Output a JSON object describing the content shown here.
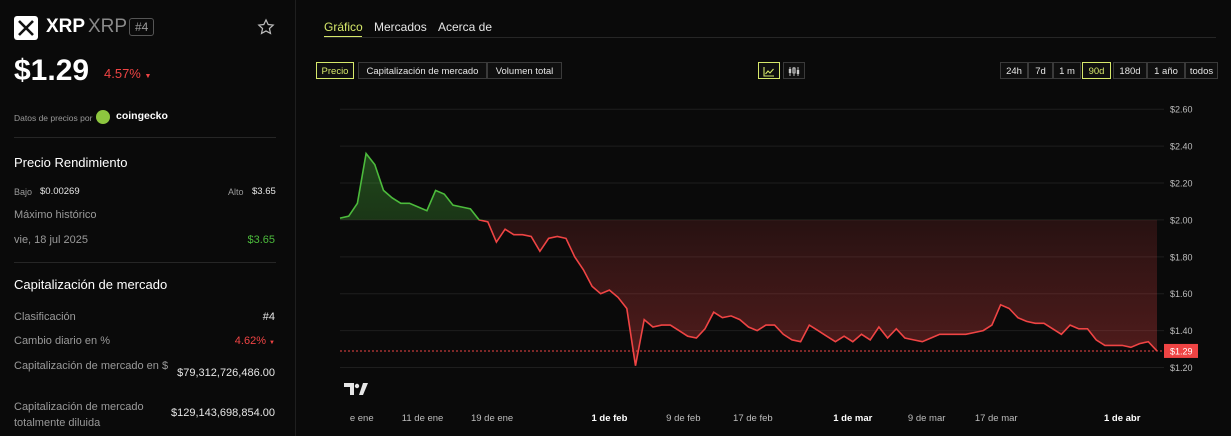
{
  "header": {
    "name": "XRP",
    "ticker": "XRP",
    "rank": "#4",
    "price": "$1.29",
    "change": "4.57%",
    "price_source_label": "Datos de precios por",
    "price_source_name": "coingecko"
  },
  "performance": {
    "title": "Precio Rendimiento",
    "low_label": "Bajo",
    "low_value": "$0.00269",
    "high_label": "Alto",
    "high_value": "$3.65",
    "ath_label": "Máximo histórico",
    "ath_date": "vie, 18 jul 2025",
    "ath_value": "$3.65"
  },
  "market_cap": {
    "title": "Capitalización de mercado",
    "rows": [
      {
        "label": "Clasificación",
        "value": "#4"
      },
      {
        "label": "Cambio diario en %",
        "value": "4.62%"
      },
      {
        "label": "Capitalización de mercado en $",
        "value": "$79,312,726,486.00"
      },
      {
        "label": "Capitalización de mercado totalmente diluida",
        "value": "$129,143,698,854.00"
      }
    ]
  },
  "tabs": [
    "Gráfico",
    "Mercados",
    "Acerca de"
  ],
  "metric_buttons": [
    "Precio",
    "Capitalización de mercado",
    "Volumen total"
  ],
  "range_buttons": [
    "24h",
    "7d",
    "1 m",
    "90d",
    "180d",
    "1 año",
    "todos"
  ],
  "active_range": "90d",
  "active_metric": "Precio",
  "colors": {
    "up": "#4cbb3c",
    "down": "#ef4444",
    "accent": "#d6e86a"
  },
  "chart_data": {
    "type": "line",
    "current_price_label": "$1.29",
    "baseline": 2.0,
    "ylim": [
      1.1,
      2.65
    ],
    "y_ticks": [
      "$2.60",
      "$2.40",
      "$2.20",
      "$2.00",
      "$1.80",
      "$1.60",
      "$1.40",
      "$1.20"
    ],
    "y_tick_values": [
      2.6,
      2.4,
      2.2,
      2.0,
      1.8,
      1.6,
      1.4,
      1.2
    ],
    "x_ticks": [
      "e ene",
      "11 de ene",
      "19 de ene",
      "1 de feb",
      "9 de feb",
      "17 de feb",
      "1 de mar",
      "9 de mar",
      "17 de mar",
      "1 de abr"
    ],
    "x_tick_bold": [
      false,
      false,
      false,
      true,
      false,
      false,
      true,
      false,
      false,
      true
    ],
    "x_tick_days": [
      2.5,
      9.5,
      17.5,
      31,
      39.5,
      47.5,
      59,
      67.5,
      75.5,
      90
    ],
    "series": [
      {
        "values": [
          2.01,
          2.02,
          2.09,
          2.36,
          2.3,
          2.16,
          2.12,
          2.09,
          2.09,
          2.07,
          2.05,
          2.16,
          2.14,
          2.08,
          2.07,
          2.06,
          2.0,
          1.99,
          1.88,
          1.95,
          1.92,
          1.92,
          1.91,
          1.83,
          1.9,
          1.91,
          1.9,
          1.8,
          1.73,
          1.64,
          1.6,
          1.62,
          1.58,
          1.52,
          1.21,
          1.46,
          1.42,
          1.43,
          1.43,
          1.4,
          1.37,
          1.36,
          1.41,
          1.5,
          1.47,
          1.48,
          1.46,
          1.42,
          1.4,
          1.43,
          1.43,
          1.38,
          1.35,
          1.34,
          1.43,
          1.4,
          1.37,
          1.34,
          1.37,
          1.34,
          1.38,
          1.35,
          1.42,
          1.36,
          1.41,
          1.36,
          1.35,
          1.34,
          1.36,
          1.38,
          1.38,
          1.38,
          1.38,
          1.39,
          1.4,
          1.43,
          1.54,
          1.52,
          1.47,
          1.45,
          1.44,
          1.44,
          1.41,
          1.38,
          1.43,
          1.41,
          1.41,
          1.35,
          1.32,
          1.32,
          1.32,
          1.31,
          1.33,
          1.34,
          1.29
        ]
      }
    ]
  }
}
